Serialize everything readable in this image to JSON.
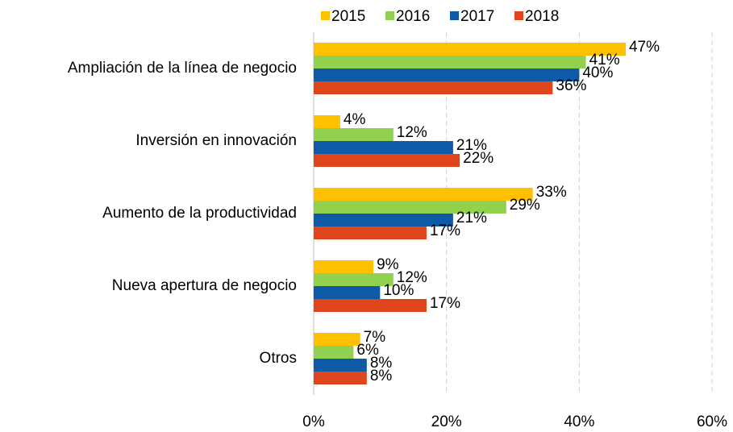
{
  "chart_data": {
    "type": "hbar",
    "categories": [
      "Ampliación de la línea de negocio",
      "Inversión en innovación",
      "Aumento de la productividad",
      "Nueva apertura de negocio",
      "Otros"
    ],
    "series": [
      {
        "name": "2015",
        "color": "#ffc000",
        "values": [
          47,
          4,
          33,
          9,
          7
        ],
        "value_labels": [
          "47%",
          "4%",
          "33%",
          "9%",
          "7%"
        ]
      },
      {
        "name": "2016",
        "color": "#92d050",
        "values": [
          41,
          12,
          29,
          12,
          6
        ],
        "value_labels": [
          "41%",
          "12%",
          "29%",
          "12%",
          "6%"
        ]
      },
      {
        "name": "2017",
        "color": "#0e5aa7",
        "values": [
          40,
          21,
          21,
          10,
          8
        ],
        "value_labels": [
          "40%",
          "21%",
          "21%",
          "10%",
          "8%"
        ]
      },
      {
        "name": "2018",
        "color": "#e0461c",
        "values": [
          36,
          22,
          17,
          17,
          8
        ],
        "value_labels": [
          "36%",
          "22%",
          "17%",
          "17%",
          "8%"
        ]
      }
    ],
    "xlim": [
      0,
      60
    ],
    "xticks": [
      {
        "value": 0,
        "label": "0%"
      },
      {
        "value": 20,
        "label": "20%"
      },
      {
        "value": 40,
        "label": "40%"
      },
      {
        "value": 60,
        "label": "60%"
      }
    ],
    "grid": true,
    "legend": "top"
  }
}
